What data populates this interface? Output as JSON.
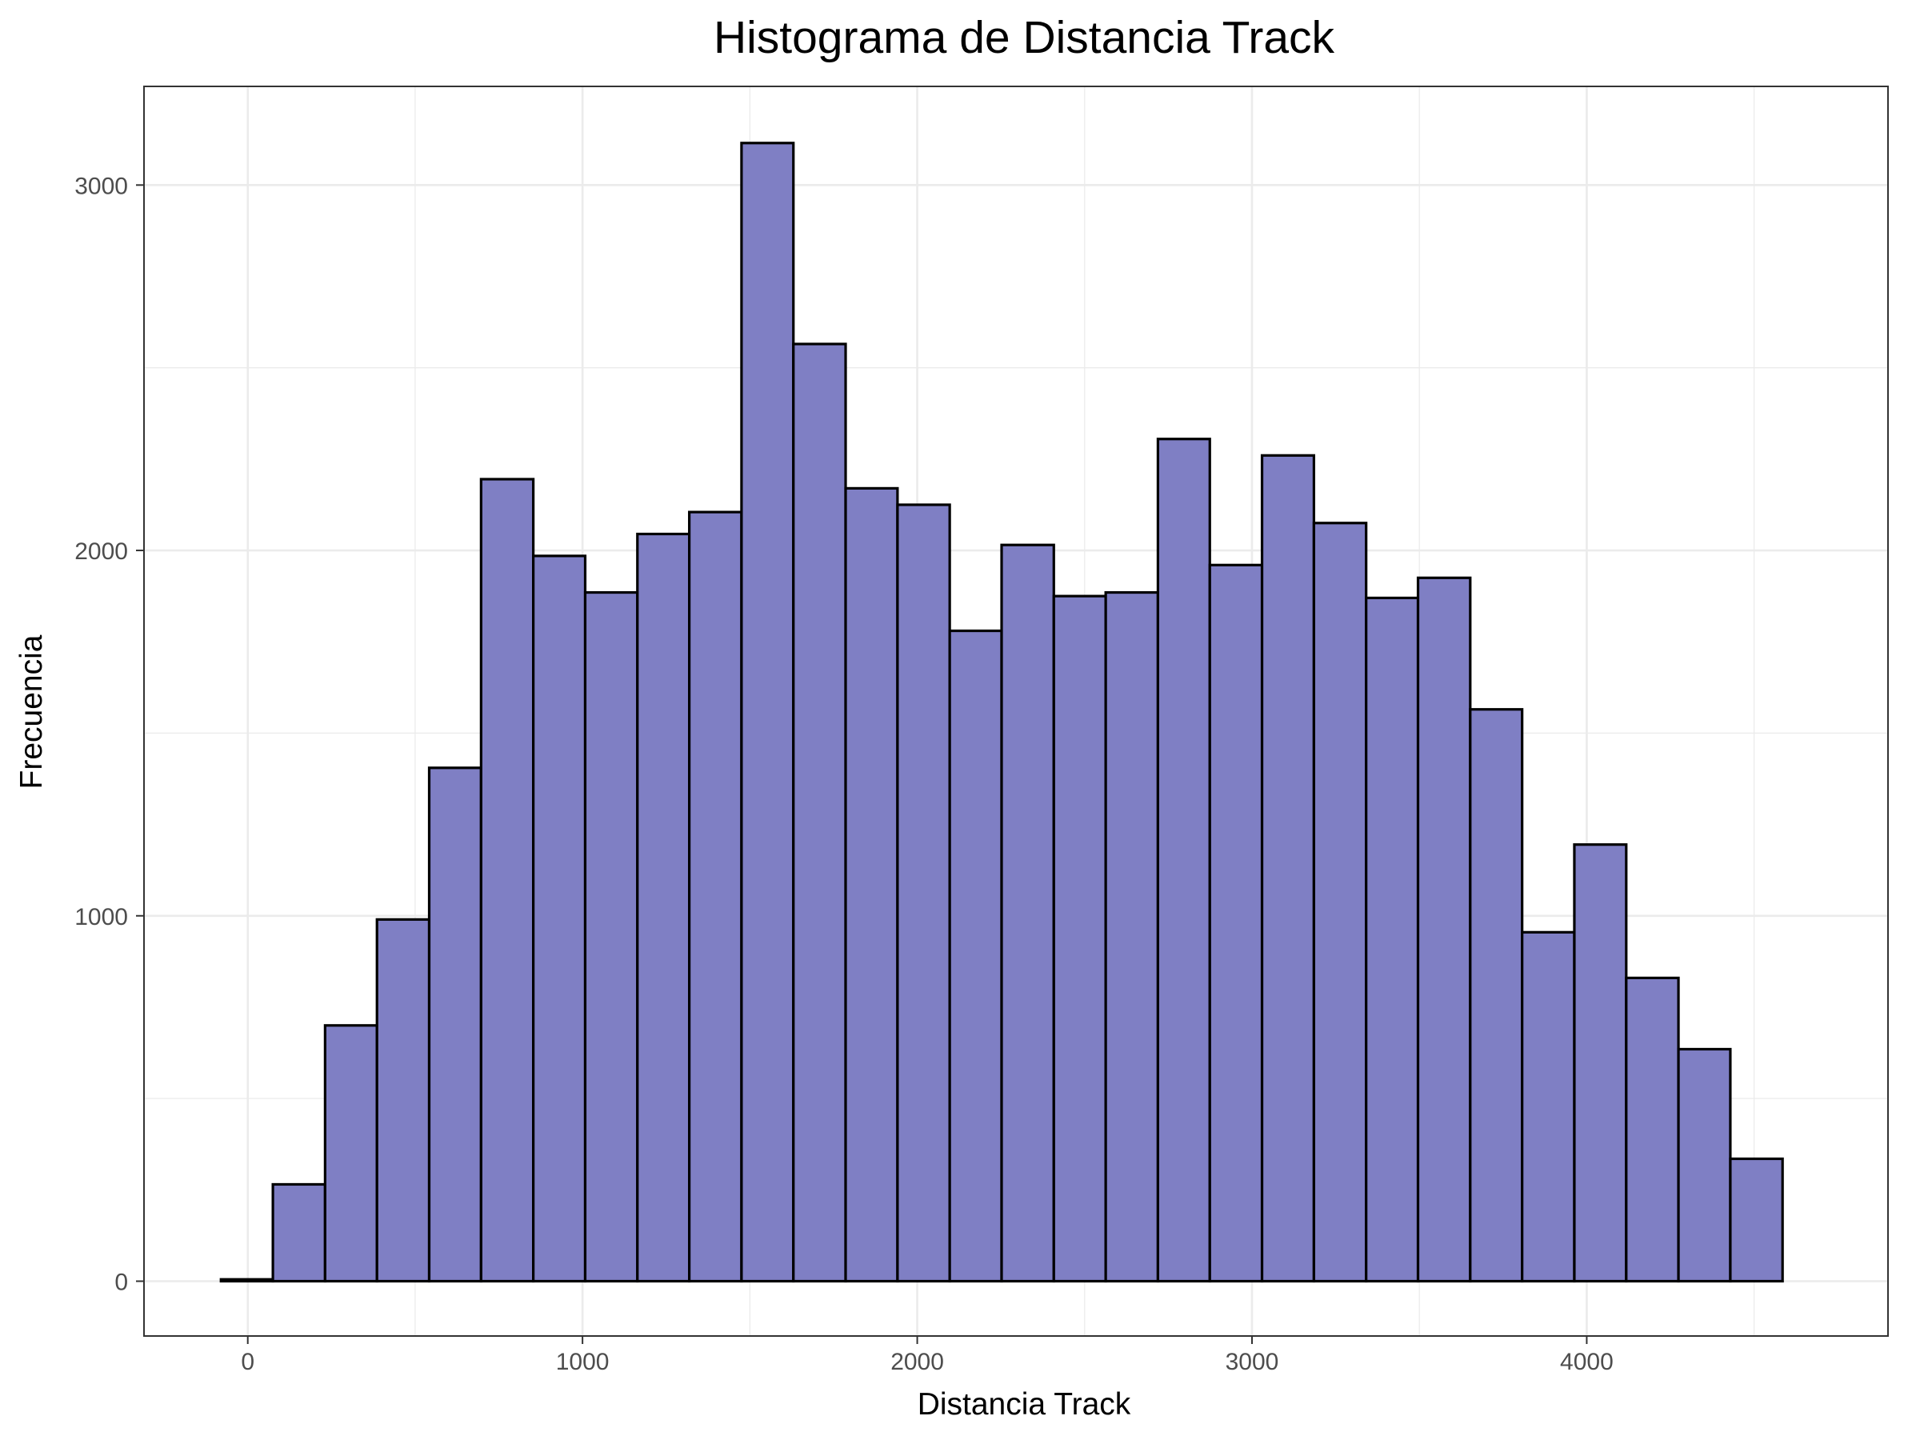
{
  "chart_data": {
    "type": "bar",
    "title": "Histograma de Distancia Track",
    "xlabel": "Distancia Track",
    "ylabel": "Frecuencia",
    "xlim": [
      -310,
      4900
    ],
    "ylim": [
      -150,
      3270
    ],
    "xticks": [
      0,
      1000,
      2000,
      3000,
      4000
    ],
    "yticks": [
      0,
      1000,
      2000,
      3000
    ],
    "bin_width": 155.5,
    "bins": [
      {
        "x0": -80,
        "x1": 75,
        "count": 5
      },
      {
        "x0": 75,
        "x1": 231,
        "count": 265
      },
      {
        "x0": 231,
        "x1": 386,
        "count": 700
      },
      {
        "x0": 386,
        "x1": 542,
        "count": 990
      },
      {
        "x0": 542,
        "x1": 697,
        "count": 1405
      },
      {
        "x0": 697,
        "x1": 853,
        "count": 2195
      },
      {
        "x0": 853,
        "x1": 1008,
        "count": 1985
      },
      {
        "x0": 1008,
        "x1": 1164,
        "count": 1885
      },
      {
        "x0": 1164,
        "x1": 1319,
        "count": 2045
      },
      {
        "x0": 1319,
        "x1": 1475,
        "count": 2105
      },
      {
        "x0": 1475,
        "x1": 1630,
        "count": 3115
      },
      {
        "x0": 1630,
        "x1": 1786,
        "count": 2565
      },
      {
        "x0": 1786,
        "x1": 1941,
        "count": 2170
      },
      {
        "x0": 1941,
        "x1": 2097,
        "count": 2125
      },
      {
        "x0": 2097,
        "x1": 2252,
        "count": 1780
      },
      {
        "x0": 2252,
        "x1": 2408,
        "count": 2015
      },
      {
        "x0": 2408,
        "x1": 2563,
        "count": 1875
      },
      {
        "x0": 2563,
        "x1": 2719,
        "count": 1885
      },
      {
        "x0": 2719,
        "x1": 2874,
        "count": 2305
      },
      {
        "x0": 2874,
        "x1": 3030,
        "count": 1960
      },
      {
        "x0": 3030,
        "x1": 3185,
        "count": 2260
      },
      {
        "x0": 3185,
        "x1": 3341,
        "count": 2075
      },
      {
        "x0": 3341,
        "x1": 3496,
        "count": 1870
      },
      {
        "x0": 3496,
        "x1": 3652,
        "count": 1925
      },
      {
        "x0": 3652,
        "x1": 3807,
        "count": 1565
      },
      {
        "x0": 3807,
        "x1": 3963,
        "count": 955
      },
      {
        "x0": 3963,
        "x1": 4118,
        "count": 1195
      },
      {
        "x0": 4118,
        "x1": 4274,
        "count": 830
      },
      {
        "x0": 4274,
        "x1": 4429,
        "count": 635
      },
      {
        "x0": 4429,
        "x1": 4585,
        "count": 335
      }
    ],
    "grid": true,
    "colors": {
      "bar_fill": "#7f7fc4",
      "bar_stroke": "#000000",
      "grid": "#ebebeb",
      "panel_border": "#333333",
      "tick_label": "#4d4d4d"
    }
  }
}
